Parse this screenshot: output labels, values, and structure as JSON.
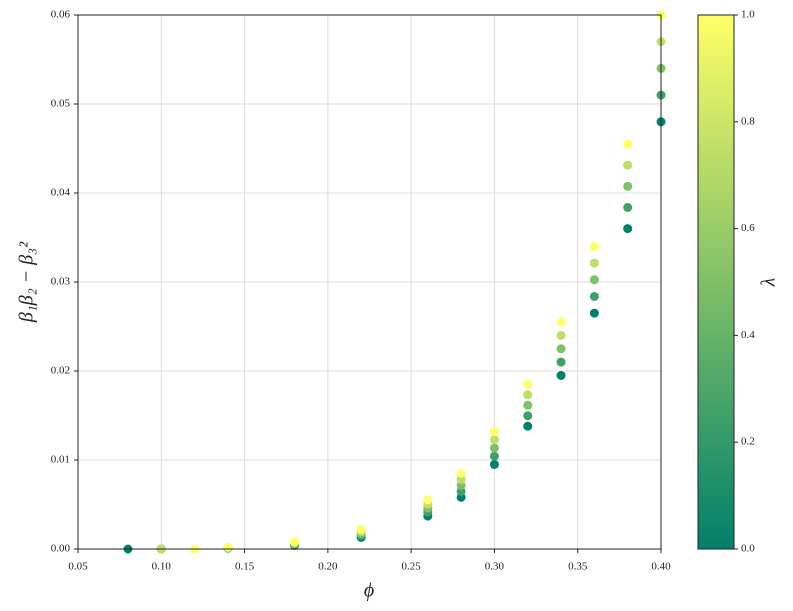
{
  "chart_data": {
    "type": "scatter",
    "x_label": "ϕ",
    "y_label": "β₁β₂ − β₃²",
    "colorbar_label": "λ",
    "x": [
      0.08,
      0.1,
      0.14,
      0.18,
      0.22,
      0.26,
      0.28,
      0.3,
      0.32,
      0.34,
      0.36,
      0.38,
      0.4,
      0.1,
      0.14,
      0.18,
      0.22,
      0.26,
      0.28,
      0.3,
      0.32,
      0.34,
      0.36,
      0.38,
      0.4,
      0.1,
      0.14,
      0.18,
      0.22,
      0.26,
      0.28,
      0.3,
      0.32,
      0.34,
      0.36,
      0.38,
      0.4,
      0.1,
      0.14,
      0.18,
      0.22,
      0.26,
      0.28,
      0.3,
      0.32,
      0.34,
      0.36,
      0.38,
      0.4,
      0.12,
      0.14,
      0.18,
      0.22,
      0.26,
      0.28,
      0.3,
      0.32,
      0.34,
      0.36,
      0.38,
      0.4
    ],
    "values": [
      0.0,
      0.0,
      0.0001,
      0.0004,
      0.0013,
      0.0037,
      0.0058,
      0.0095,
      0.0138,
      0.0195,
      0.0265,
      0.036,
      0.048,
      0.0,
      0.000125,
      0.0005,
      0.001525,
      0.00415,
      0.006475,
      0.010425,
      0.014975,
      0.021,
      0.028375,
      0.038375,
      0.051,
      0.0,
      0.00015,
      0.0006,
      0.00175,
      0.0046,
      0.00715,
      0.01135,
      0.01615,
      0.0225,
      0.03025,
      0.04075,
      0.054,
      0.0,
      0.000175,
      0.0007,
      0.001975,
      0.00505,
      0.007825,
      0.012275,
      0.017325,
      0.024,
      0.032125,
      0.043125,
      0.057,
      0.0,
      0.0002,
      0.0008,
      0.0022,
      0.0055,
      0.0085,
      0.0132,
      0.0185,
      0.0255,
      0.034,
      0.0455,
      0.06
    ],
    "c": [
      0.0,
      0,
      0,
      0,
      0,
      0,
      0,
      0,
      0,
      0,
      0,
      0,
      0,
      0.25,
      0.25,
      0.25,
      0.25,
      0.25,
      0.25,
      0.25,
      0.25,
      0.25,
      0.25,
      0.25,
      0.25,
      0.5,
      0.5,
      0.5,
      0.5,
      0.5,
      0.5,
      0.5,
      0.5,
      0.5,
      0.5,
      0.5,
      0.5,
      0.75,
      0.75,
      0.75,
      0.75,
      0.75,
      0.75,
      0.75,
      0.75,
      0.75,
      0.75,
      0.75,
      0.75,
      1,
      1,
      1,
      1,
      1,
      1,
      1,
      1,
      1,
      1,
      1,
      1
    ],
    "cmap_colors": [
      "#00806a",
      "#ffff66"
    ],
    "clim": [
      0,
      1
    ],
    "cticks": [
      {
        "value": 0,
        "label": "0.0"
      },
      0.2,
      0.4,
      0.6,
      0.8,
      {
        "value": 1,
        "label": "1.0"
      }
    ],
    "xlim": [
      0.05,
      0.4
    ],
    "xticks": [
      0.05,
      {
        "value": 0.1,
        "label": "0.10"
      },
      0.15,
      {
        "value": 0.2,
        "label": "0.20"
      },
      0.25,
      {
        "value": 0.3,
        "label": "0.30"
      },
      0.35,
      {
        "value": 0.4,
        "label": "0.40"
      }
    ],
    "ylim": [
      0,
      0.06
    ],
    "yticks": [
      {
        "value": 0,
        "label": "0.00"
      },
      0.01,
      0.02,
      0.03,
      0.04,
      0.05,
      {
        "value": 0.06,
        "label": "0.06"
      }
    ],
    "grid": true
  }
}
